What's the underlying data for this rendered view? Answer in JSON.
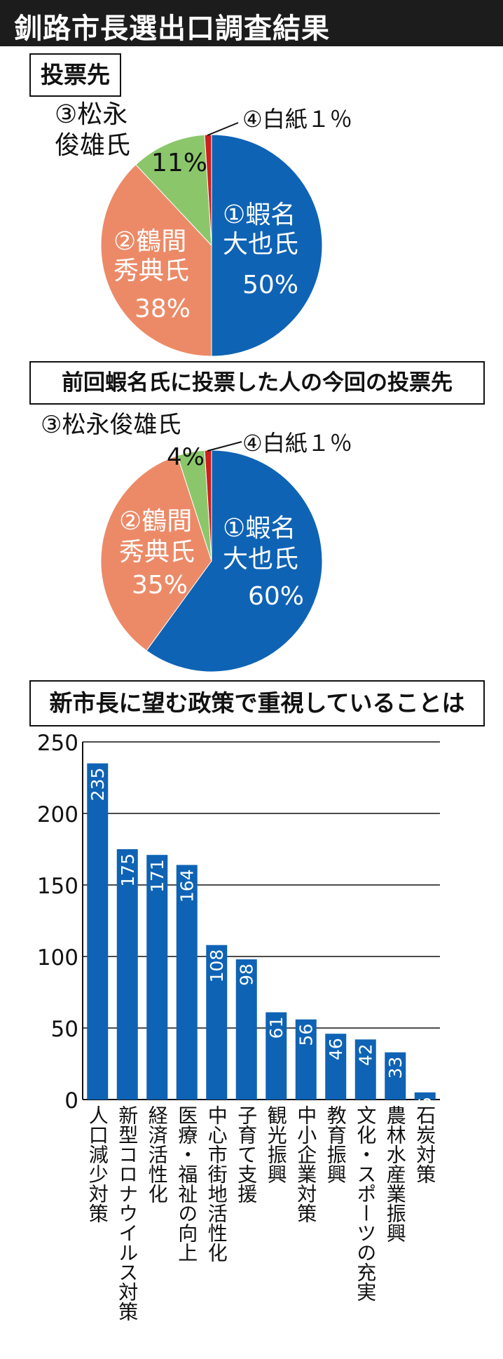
{
  "page_title": "釧路市長選出口調査結果",
  "section1_title": "投票先",
  "section2_title": "前回蝦名氏に投票した人の今回の投票先",
  "section3_title": "新市長に望む政策で重視していることは",
  "colors": {
    "c1": "#0e63b5",
    "c2": "#ec8a67",
    "c3": "#8bc76a",
    "c4": "#cc1f1f",
    "bar": "#0e63b5"
  },
  "chart_data": [
    {
      "type": "pie",
      "title": "投票先",
      "slices": [
        {
          "label_lines": [
            "①蝦名",
            "大也氏"
          ],
          "value": 50,
          "value_label": "50%",
          "color": "#0e63b5"
        },
        {
          "label_lines": [
            "②鶴間",
            "秀典氏"
          ],
          "value": 38,
          "value_label": "38%",
          "color": "#ec8a67"
        },
        {
          "label_lines": [
            "③松永",
            "俊雄氏"
          ],
          "value": 11,
          "value_label": "11%",
          "color": "#8bc76a"
        },
        {
          "label_lines": [
            "④白紙１％"
          ],
          "value": 1,
          "value_label": "",
          "color": "#cc1f1f"
        }
      ]
    },
    {
      "type": "pie",
      "title": "前回蝦名氏に投票した人の今回の投票先",
      "slices": [
        {
          "label_lines": [
            "①蝦名",
            "大也氏"
          ],
          "value": 60,
          "value_label": "60%",
          "color": "#0e63b5"
        },
        {
          "label_lines": [
            "②鶴間",
            "秀典氏"
          ],
          "value": 35,
          "value_label": "35%",
          "color": "#ec8a67"
        },
        {
          "label_lines": [
            "③松永俊雄氏"
          ],
          "value": 4,
          "value_label": "4%",
          "color": "#8bc76a"
        },
        {
          "label_lines": [
            "④白紙１％"
          ],
          "value": 1,
          "value_label": "",
          "color": "#cc1f1f"
        }
      ]
    },
    {
      "type": "bar",
      "title": "新市長に望む政策で重視していることは",
      "categories": [
        "人口減少対策",
        "新型コロナウイルス対策",
        "経済活性化",
        "医療・福祉の向上",
        "中心市街地活性化",
        "子育て支援",
        "観光振興",
        "中小企業対策",
        "教育振興",
        "文化・スポーツの充実",
        "農林水産業振興",
        "石炭対策"
      ],
      "values": [
        235,
        175,
        171,
        164,
        108,
        98,
        61,
        56,
        46,
        42,
        33,
        5
      ],
      "ylim": [
        0,
        250
      ],
      "yticks": [
        0,
        50,
        100,
        150,
        200,
        250
      ],
      "grid": true
    }
  ]
}
